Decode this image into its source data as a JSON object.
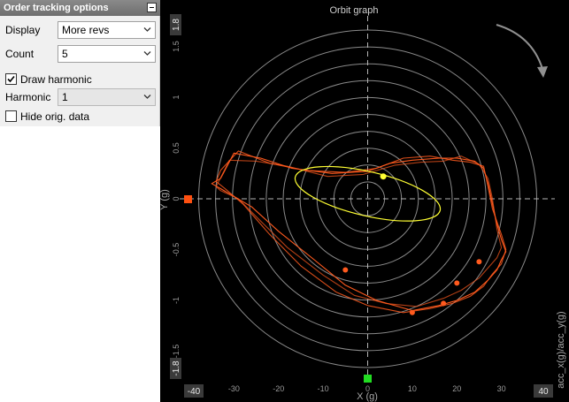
{
  "panel": {
    "title": "Order tracking options",
    "display_label": "Display",
    "display_value": "More revs",
    "count_label": "Count",
    "count_value": "5",
    "draw_harmonic_label": "Draw harmonic",
    "draw_harmonic_checked": true,
    "harmonic_label": "Harmonic",
    "harmonic_value": "1",
    "hide_orig_label": "Hide orig. data",
    "hide_orig_checked": false
  },
  "graph": {
    "title": "Orbit graph",
    "xlabel": "X (g)",
    "ylabel": "Y (g)",
    "right_label": "acc_x(g)/acc_y(g)",
    "x_ticks": [
      "-30",
      "-20",
      "-10",
      "0",
      "10",
      "20",
      "30"
    ],
    "y_ticks": [
      "1.5",
      "1",
      "0.5",
      "0",
      "-0.5",
      "-1",
      "-1.5"
    ],
    "x_min_label": "-40",
    "x_max_label": "40",
    "y_max_label": "1.8",
    "y_min_label": "-1.8",
    "colors": {
      "background": "#000000",
      "orbit": "#ff5a1e",
      "harmonic": "#ffff33",
      "x_marker": "#22dd22",
      "y_marker": "#ff5010",
      "rotation_arrow": "#909090"
    }
  },
  "chart_data": {
    "type": "scatter",
    "title": "Orbit graph",
    "xlabel": "X (g)",
    "ylabel": "Y (g)",
    "xlim": [
      -40,
      40
    ],
    "ylim": [
      -1.8,
      1.8
    ],
    "grid": true,
    "series": [
      {
        "x": [
          -33,
          -30,
          -24,
          -17,
          -8,
          0,
          5,
          10,
          16,
          20,
          24,
          26,
          27,
          28,
          29,
          30,
          31,
          30,
          29,
          27,
          24,
          20,
          16,
          10,
          2,
          -5,
          -12,
          -20,
          -26,
          -31,
          -33,
          -35,
          -33
        ],
        "y": [
          0.2,
          0.45,
          0.4,
          0.3,
          0.25,
          0.27,
          0.35,
          0.38,
          0.4,
          0.4,
          0.37,
          0.3,
          0.15,
          -0.05,
          -0.25,
          -0.4,
          -0.52,
          -0.6,
          -0.7,
          -0.8,
          -0.92,
          -1.0,
          -1.05,
          -1.1,
          -1.0,
          -0.85,
          -0.6,
          -0.32,
          -0.08,
          0.05,
          0.1,
          0.15,
          0.2
        ]
      },
      {
        "x": [
          -33,
          -29,
          -22,
          -14,
          -5,
          2,
          8,
          14,
          19,
          23,
          26,
          27,
          28,
          30,
          31,
          30,
          28,
          26,
          23,
          19,
          14,
          8,
          0,
          -7,
          -15,
          -22,
          -28,
          -32,
          -34,
          -33
        ],
        "y": [
          0.28,
          0.47,
          0.35,
          0.28,
          0.26,
          0.3,
          0.4,
          0.42,
          0.38,
          0.36,
          0.32,
          0.12,
          -0.1,
          -0.35,
          -0.5,
          -0.64,
          -0.74,
          -0.86,
          -0.96,
          -1.03,
          -1.08,
          -1.12,
          -1.05,
          -0.92,
          -0.66,
          -0.35,
          -0.05,
          0.1,
          0.17,
          0.28
        ]
      },
      {
        "x": [
          -34,
          -31,
          -25,
          -18,
          -9,
          -1,
          6,
          12,
          17,
          21,
          25,
          27,
          28,
          29,
          30,
          29,
          27,
          25,
          21,
          17,
          11,
          4,
          -3,
          -10,
          -18,
          -24,
          -29,
          -33,
          -34
        ],
        "y": [
          0.12,
          0.38,
          0.37,
          0.32,
          0.22,
          0.24,
          0.33,
          0.36,
          0.37,
          0.42,
          0.34,
          0.2,
          0.0,
          -0.3,
          -0.48,
          -0.58,
          -0.68,
          -0.78,
          -0.9,
          -0.98,
          -1.06,
          -1.03,
          -0.95,
          -0.75,
          -0.48,
          -0.22,
          0.0,
          0.08,
          0.12
        ]
      }
    ],
    "harmonic": {
      "x": [
        3.5
      ],
      "y": [
        0.22
      ]
    },
    "order_points": {
      "x": [
        -5,
        10,
        17,
        20,
        25
      ],
      "y": [
        -0.7,
        -1.12,
        -1.03,
        -0.83,
        -0.62
      ]
    }
  }
}
